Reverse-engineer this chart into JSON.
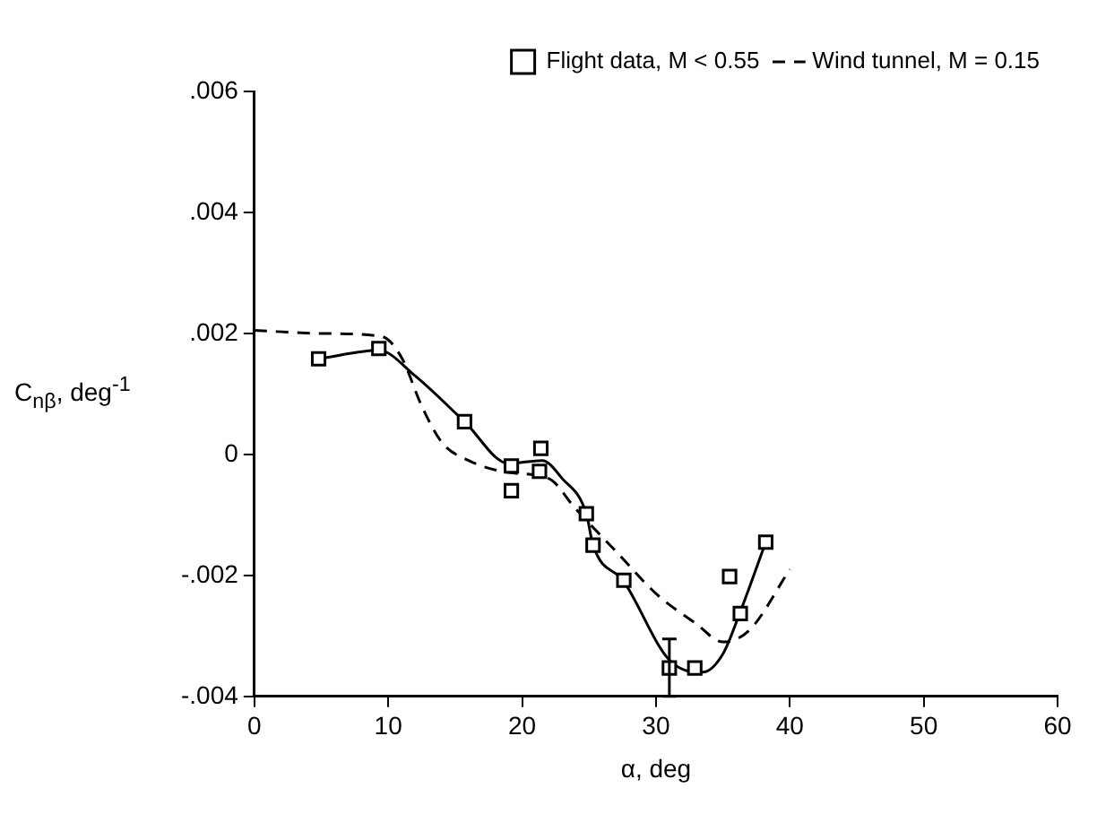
{
  "chart_data": {
    "type": "scatter",
    "xlabel": "α, deg",
    "ylabel": "C$_{nβ}$, deg$^{-1}$",
    "xlim": [
      0,
      60
    ],
    "xticks": [
      0,
      10,
      20,
      30,
      40,
      50,
      60
    ],
    "ylim": [
      -0.004,
      0.006
    ],
    "yticks": [
      {
        "value": -0.004,
        "label": "-.004"
      },
      {
        "value": -0.002,
        "label": "-.002"
      },
      0,
      {
        "value": 0.002,
        "label": ".002"
      },
      {
        "value": 0.004,
        "label": ".004"
      },
      {
        "value": 0.006,
        "label": ".006"
      }
    ],
    "grid": false,
    "legend": "top right",
    "series": [
      {
        "name": "Flight data, M < 0.55",
        "type": "scatter",
        "marker": "square",
        "color": "#000000",
        "x": [
          4.8,
          9.3,
          15.7,
          19.2,
          19.2,
          21.4,
          21.3,
          24.8,
          25.3,
          27.6,
          31.0,
          32.9,
          35.5,
          36.3,
          38.2
        ],
        "values": [
          0.00158,
          0.00175,
          0.00054,
          -0.00019,
          -0.0006,
          0.0001,
          -0.00028,
          -0.00098,
          -0.0015,
          -0.00208,
          -0.00353,
          -0.00353,
          -0.00202,
          -0.00263,
          -0.00145
        ],
        "errors": [
          null,
          null,
          null,
          null,
          null,
          null,
          null,
          null,
          null,
          null,
          [
            -0.004,
            -0.00305
          ],
          null,
          null,
          null,
          null
        ]
      },
      {
        "type": "line",
        "marker": "none",
        "line_style": "solid",
        "color": "#000000",
        "x": [
          4.8,
          9.3,
          12,
          15.7,
          19,
          21.5,
          23,
          24.8,
          25.3,
          27.6,
          31,
          33.5,
          35,
          36.3,
          38.2
        ],
        "values": [
          0.00158,
          0.00172,
          0.0013,
          0.00054,
          -0.00015,
          -0.0001,
          -0.0004,
          -0.00098,
          -0.0015,
          -0.0021,
          -0.0034,
          -0.0036,
          -0.0033,
          -0.0026,
          -0.00145
        ]
      },
      {
        "name": "Wind tunnel, M = 0.15",
        "type": "line",
        "marker": "none",
        "line_style": "dashed",
        "color": "#000000",
        "x": [
          0,
          5,
          9.5,
          11,
          12.5,
          14,
          16,
          19,
          22,
          24,
          27,
          30,
          33,
          35,
          37,
          40
        ],
        "values": [
          0.00205,
          0.002,
          0.00195,
          0.0016,
          0.0008,
          0.0002,
          -0.0001,
          -0.0003,
          -0.0004,
          -0.0009,
          -0.0016,
          -0.0023,
          -0.0028,
          -0.0031,
          -0.0029,
          -0.0019
        ]
      }
    ]
  }
}
